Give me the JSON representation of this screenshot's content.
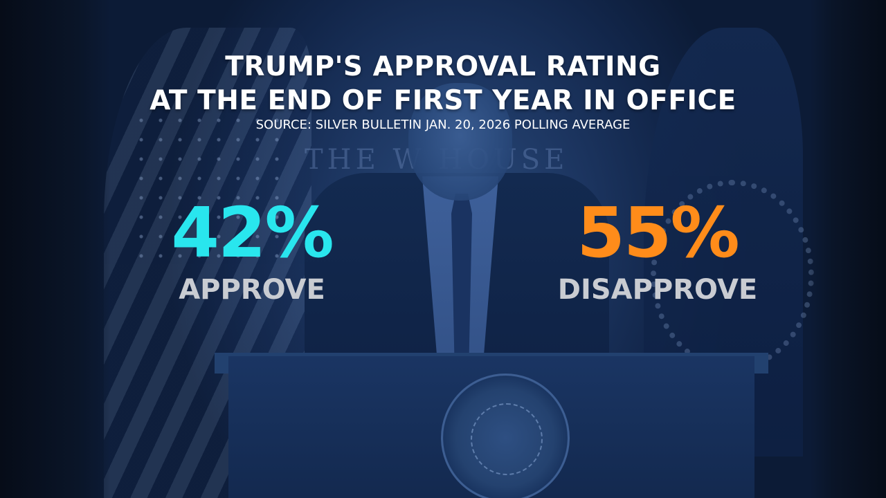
{
  "graphic": {
    "title_line1": "TRUMP'S APPROVAL RATING",
    "title_line2": "AT THE END OF FIRST YEAR IN OFFICE",
    "source": "SOURCE: SILVER BULLETIN JAN. 20, 2026 POLLING AVERAGE",
    "approve": {
      "value": "42%",
      "label": "APPROVE",
      "color": "#29e6ee"
    },
    "disapprove": {
      "value": "55%",
      "label": "DISAPPROVE",
      "color": "#ff8c1a"
    }
  },
  "background": {
    "wall_text": "THE W    HOUSE",
    "scene": "press-briefing-podium-photo"
  }
}
